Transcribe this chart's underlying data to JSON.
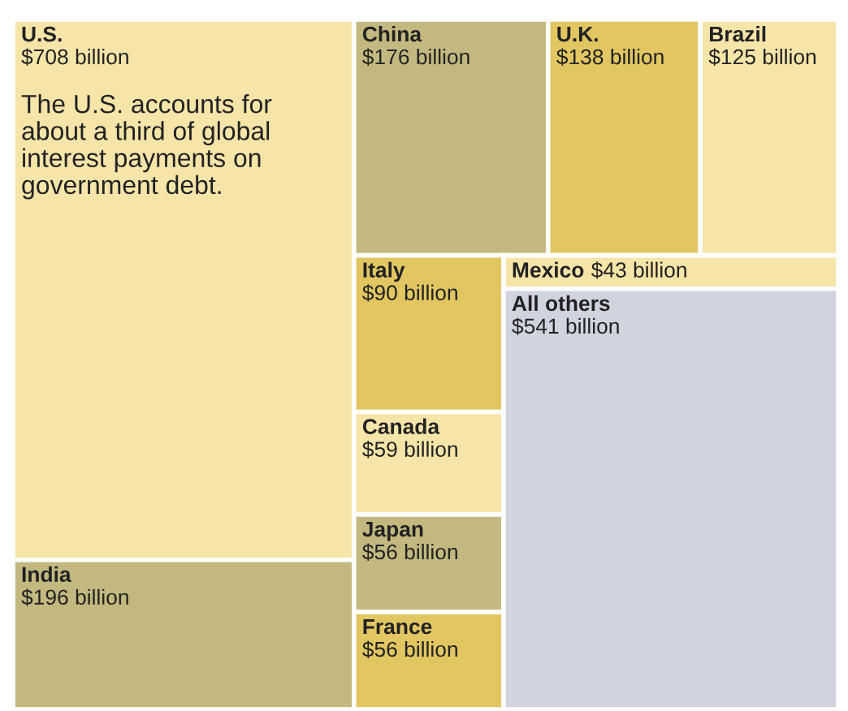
{
  "chart_data": {
    "type": "other",
    "categories": [
      "U.S.",
      "India",
      "China",
      "U.K.",
      "Brazil",
      "Italy",
      "Canada",
      "Japan",
      "France",
      "Mexico",
      "All others"
    ],
    "values": [
      708,
      196,
      176,
      138,
      125,
      90,
      59,
      56,
      56,
      43,
      541
    ],
    "value_labels": [
      "$708 billion",
      "$196 billion",
      "$176 billion",
      "$138 billion",
      "$125 billion",
      "$90 billion",
      "$59 billion",
      "$56 billion",
      "$56 billion",
      "$43 billion",
      "$541 billion"
    ],
    "colors": [
      "#f6e5a9",
      "#c3b980",
      "#c3b980",
      "#e1c662",
      "#f6e5a9",
      "#e1c662",
      "#f6e5a9",
      "#c3b980",
      "#e1c662",
      "#f6e5a9",
      "#d0d4df"
    ],
    "annotations": [
      "The U.S. accounts for about a third of global interest payments on government debt."
    ]
  }
}
